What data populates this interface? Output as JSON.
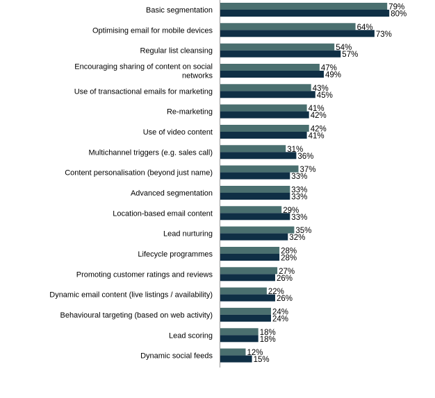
{
  "chart_data": {
    "type": "bar",
    "orientation": "horizontal",
    "title": "",
    "xlabel": "",
    "ylabel": "",
    "xlim": [
      0,
      100
    ],
    "grid": false,
    "legend": "none",
    "value_suffix": "%",
    "colors": [
      "#4a6f6f",
      "#0f2f45"
    ],
    "categories": [
      [
        "Basic segmentation"
      ],
      [
        "Optimising email for mobile devices"
      ],
      [
        "Regular list cleansing"
      ],
      [
        "Encouraging sharing of content on social",
        "networks"
      ],
      [
        "Use of transactional emails for marketing"
      ],
      [
        "Re-marketing"
      ],
      [
        "Use of video content"
      ],
      [
        "Multichannel triggers (e.g. sales call)"
      ],
      [
        "Content personalisation (beyond just name)"
      ],
      [
        "Advanced segmentation"
      ],
      [
        "Location-based email content"
      ],
      [
        "Lead nurturing"
      ],
      [
        "Lifecycle programmes"
      ],
      [
        "Promoting customer ratings and reviews"
      ],
      [
        "Dynamic email content (live listings / availability)"
      ],
      [
        "Behavioural targeting (based on web activity)"
      ],
      [
        "Lead scoring"
      ],
      [
        "Dynamic social feeds"
      ]
    ],
    "series": [
      {
        "values": [
          79,
          64,
          54,
          47,
          43,
          41,
          42,
          31,
          37,
          33,
          29,
          35,
          28,
          27,
          22,
          24,
          18,
          12
        ]
      },
      {
        "values": [
          80,
          73,
          57,
          49,
          45,
          42,
          41,
          36,
          33,
          33,
          33,
          32,
          28,
          26,
          26,
          24,
          18,
          15
        ]
      }
    ]
  }
}
